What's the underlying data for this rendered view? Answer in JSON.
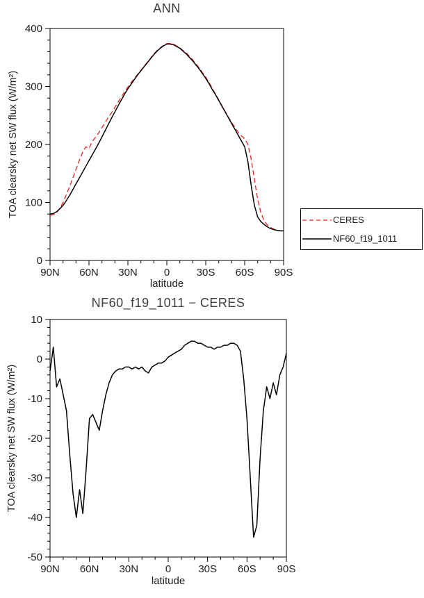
{
  "figure": {
    "background": "#ffffff",
    "axis_color": "#000000",
    "text_color": "#222222"
  },
  "chart_data": [
    {
      "type": "line",
      "title": "ANN",
      "xlabel": "latitude",
      "ylabel": "TOA clearsky net SW flux (W/m²)",
      "xlim": [
        90,
        -90
      ],
      "ylim": [
        0,
        400
      ],
      "yticks": [
        0,
        100,
        200,
        300,
        400
      ],
      "y_minor_step": 20,
      "xticks": [
        90,
        60,
        30,
        0,
        -30,
        -60,
        -90
      ],
      "xtick_labels": [
        "90N",
        "60N",
        "30N",
        "0",
        "30S",
        "60S",
        "90S"
      ],
      "x_minor_step": 10,
      "grid": false,
      "legend_position": "outside-lower-right",
      "x": [
        90,
        87.5,
        85,
        82.5,
        80,
        77.5,
        75,
        72.5,
        70,
        67.5,
        65,
        62.5,
        60,
        57.5,
        55,
        52.5,
        50,
        47.5,
        45,
        42.5,
        40,
        37.5,
        35,
        32.5,
        30,
        27.5,
        25,
        22.5,
        20,
        17.5,
        15,
        12.5,
        10,
        7.5,
        5,
        2.5,
        0,
        -2.5,
        -5,
        -7.5,
        -10,
        -12.5,
        -15,
        -17.5,
        -20,
        -22.5,
        -25,
        -27.5,
        -30,
        -32.5,
        -35,
        -37.5,
        -40,
        -42.5,
        -45,
        -47.5,
        -50,
        -52.5,
        -55,
        -57.5,
        -60,
        -62.5,
        -65,
        -67.5,
        -70,
        -72.5,
        -75,
        -77.5,
        -80,
        -82.5,
        -85,
        -87.5,
        -90
      ],
      "series": [
        {
          "name": "CERES",
          "color": "#ee2222",
          "dash": "7,4",
          "width": 1.3,
          "values": [
            78,
            79,
            82,
            90,
            100,
            113,
            127,
            142,
            157,
            172,
            186,
            196,
            193,
            205,
            212,
            220,
            229,
            238,
            247,
            255,
            264,
            273,
            282,
            291,
            299,
            307,
            314,
            321,
            328,
            335,
            342,
            349,
            356,
            362,
            367,
            371,
            374,
            374,
            373,
            370,
            367,
            362,
            358,
            352,
            346,
            339,
            332,
            324,
            316,
            307,
            297,
            287,
            277,
            267,
            257,
            247,
            238,
            229,
            221,
            215,
            210,
            200,
            175,
            140,
            105,
            83,
            68,
            61,
            57,
            54,
            52,
            51,
            51
          ]
        },
        {
          "name": "NF60_f19_1011",
          "color": "#000000",
          "dash": null,
          "width": 1.5,
          "values": [
            80,
            81,
            84,
            89,
            95,
            103,
            112,
            122,
            132,
            142,
            152,
            162,
            172,
            182,
            192,
            202,
            213,
            224,
            235,
            246,
            256,
            267,
            277,
            287,
            296,
            304,
            312,
            320,
            327,
            334,
            341,
            348,
            355,
            361,
            366,
            370,
            373,
            373,
            372,
            369,
            366,
            361,
            356,
            350,
            344,
            337,
            330,
            322,
            314,
            305,
            295,
            286,
            276,
            266,
            256,
            246,
            236,
            226,
            216,
            206,
            196,
            170,
            130,
            95,
            75,
            67,
            62,
            58,
            55,
            53,
            52,
            51,
            51
          ]
        }
      ]
    },
    {
      "type": "line",
      "title": "NF60_f19_1011 − CERES",
      "xlabel": "latitude",
      "ylabel": "TOA clearsky net SW flux (W/m²)",
      "xlim": [
        90,
        -90
      ],
      "ylim": [
        -50,
        10
      ],
      "yticks": [
        10,
        0,
        -10,
        -20,
        -30,
        -40,
        -50
      ],
      "y_minor_step": 2,
      "xticks": [
        90,
        60,
        30,
        0,
        -30,
        -60,
        -90
      ],
      "xtick_labels": [
        "90N",
        "60N",
        "30N",
        "0",
        "30S",
        "60S",
        "90S"
      ],
      "x_minor_step": 10,
      "grid": false,
      "legend_position": "none",
      "x": [
        90,
        87.5,
        85,
        82.5,
        80,
        77.5,
        75,
        72.5,
        70,
        67.5,
        65,
        62.5,
        60,
        57.5,
        55,
        52.5,
        50,
        47.5,
        45,
        42.5,
        40,
        37.5,
        35,
        32.5,
        30,
        27.5,
        25,
        22.5,
        20,
        17.5,
        15,
        12.5,
        10,
        7.5,
        5,
        2.5,
        0,
        -2.5,
        -5,
        -7.5,
        -10,
        -12.5,
        -15,
        -17.5,
        -20,
        -22.5,
        -25,
        -27.5,
        -30,
        -32.5,
        -35,
        -37.5,
        -40,
        -42.5,
        -45,
        -47.5,
        -50,
        -52.5,
        -55,
        -57.5,
        -60,
        -62.5,
        -65,
        -67.5,
        -70,
        -72.5,
        -75,
        -77.5,
        -80,
        -82.5,
        -85,
        -87.5,
        -90
      ],
      "series": [
        {
          "name": "NF60_f19_1011 - CERES",
          "color": "#000000",
          "dash": null,
          "width": 1.5,
          "values": [
            -3,
            3,
            -7,
            -5,
            -9,
            -13,
            -24,
            -34,
            -40,
            -33,
            -39,
            -28,
            -15,
            -14,
            -16,
            -18,
            -13,
            -9,
            -6,
            -4,
            -3,
            -2.5,
            -2.5,
            -2,
            -2,
            -2.5,
            -2,
            -2.5,
            -2,
            -3,
            -3.5,
            -2,
            -1.5,
            -1,
            -1,
            -0.5,
            0.5,
            1,
            1.5,
            2,
            2.5,
            3.5,
            4,
            4.5,
            4.5,
            4,
            4,
            3.5,
            3,
            3,
            2.5,
            3,
            3,
            3.5,
            3.5,
            4,
            4,
            3.5,
            2,
            -5,
            -15,
            -30,
            -45,
            -42,
            -25,
            -13,
            -7,
            -10,
            -6,
            -9,
            -4,
            -2,
            1.5
          ]
        }
      ]
    }
  ]
}
